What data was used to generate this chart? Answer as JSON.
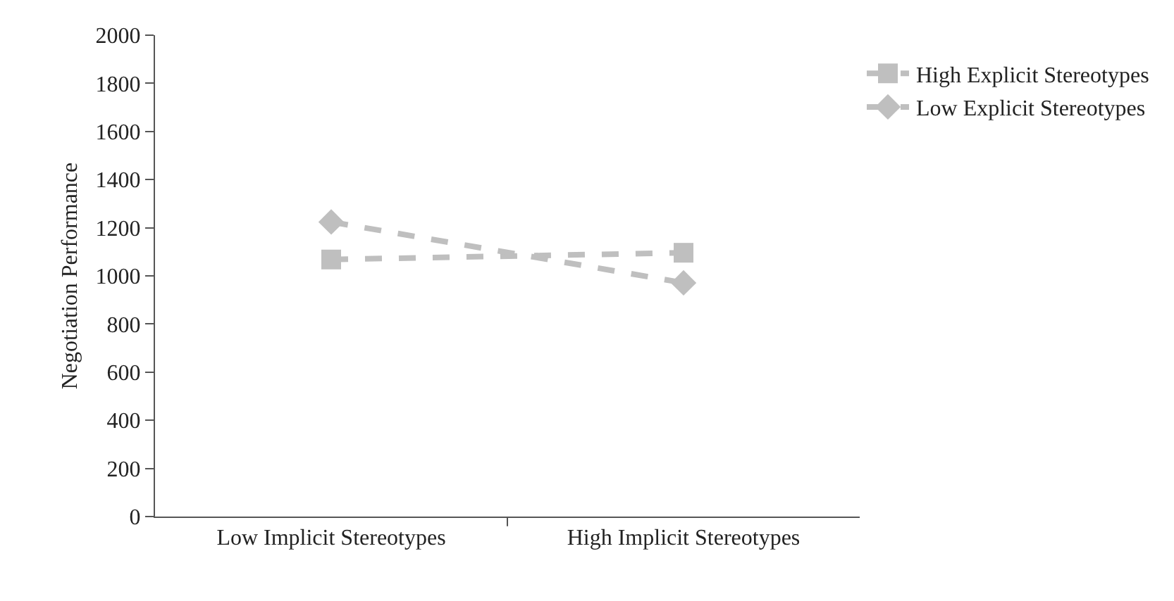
{
  "chart_data": {
    "type": "line",
    "ylabel": "Negotiation Performance",
    "categories": [
      "Low Implicit Stereotypes",
      "High Implicit Stereotypes"
    ],
    "series": [
      {
        "name": "High Explicit Stereotypes",
        "color": "#bfbfbf",
        "marker": "square",
        "values": [
          1068,
          1096
        ]
      },
      {
        "name": "Low Explicit Stereotypes",
        "color": "#bfbfbf",
        "marker": "diamond",
        "values": [
          1224,
          971
        ]
      }
    ],
    "ylim": [
      0,
      2000
    ],
    "yticks": [
      0,
      200,
      400,
      600,
      800,
      1000,
      1200,
      1400,
      1600,
      1800,
      2000
    ],
    "grid": false,
    "legend": "right",
    "line_style": "dashed"
  }
}
